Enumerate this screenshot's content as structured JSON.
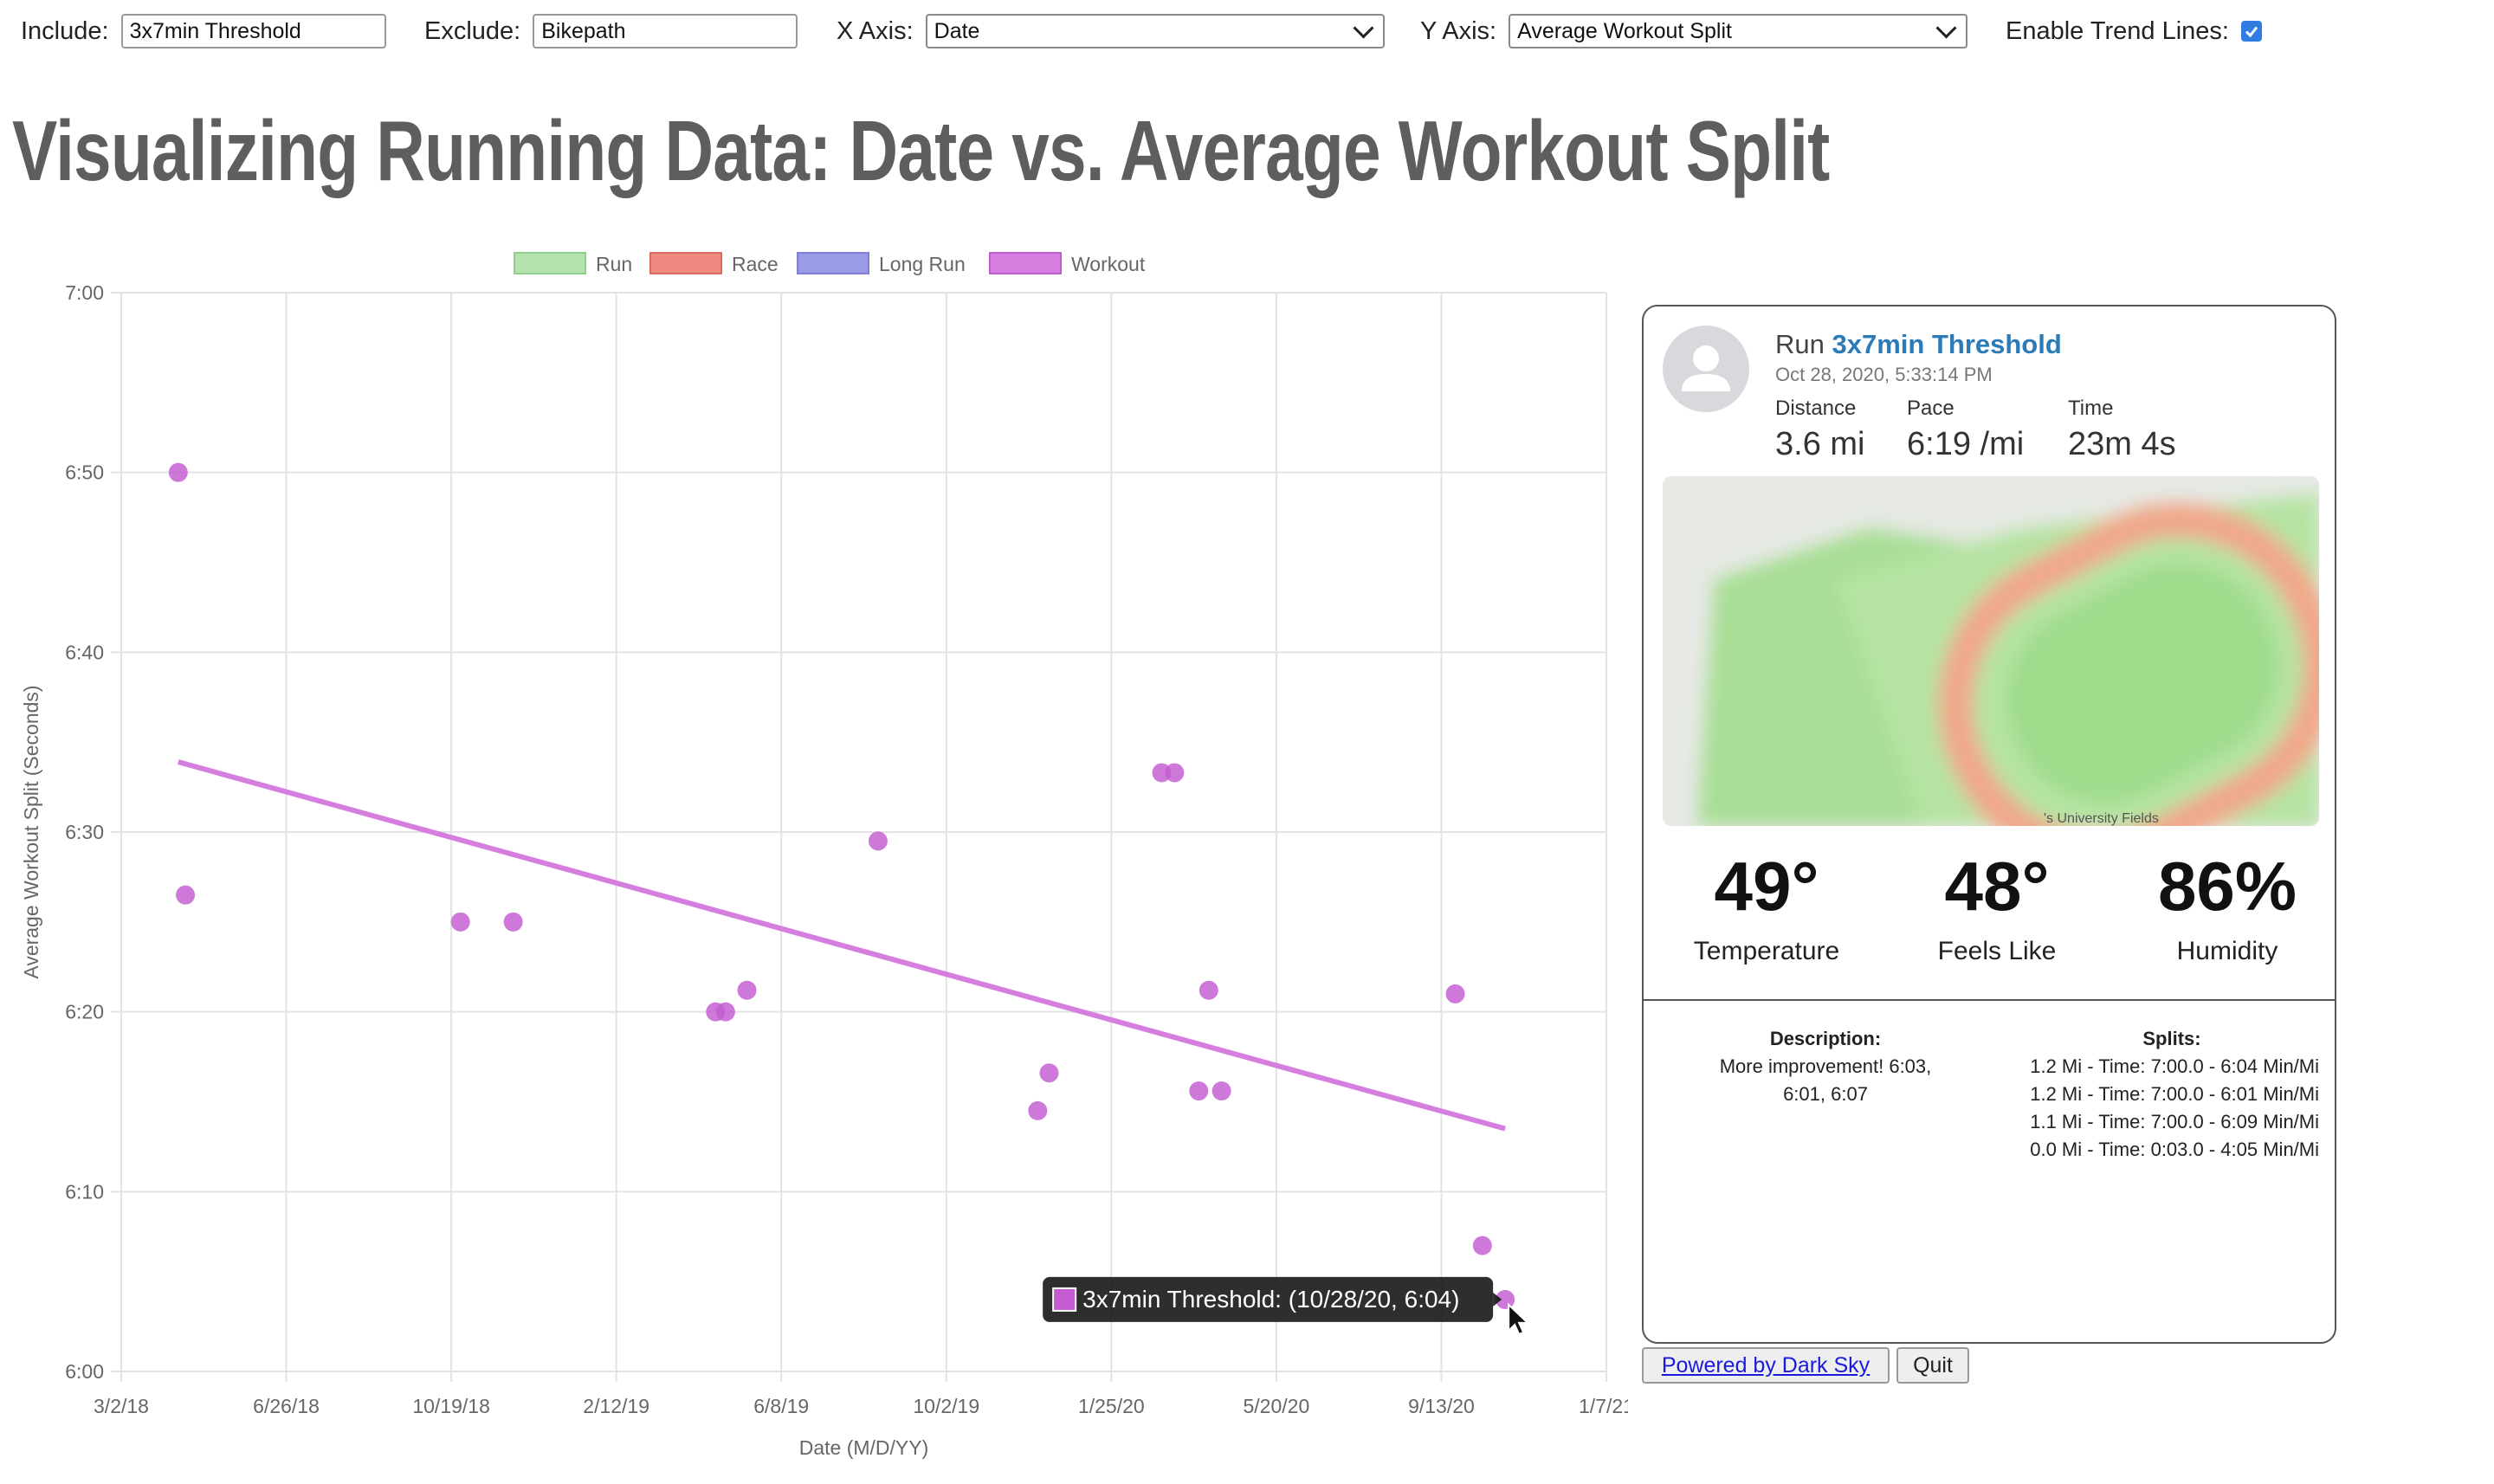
{
  "controls": {
    "include_label": "Include:",
    "include_value": "3x7min Threshold",
    "exclude_label": "Exclude:",
    "exclude_value": "Bikepath",
    "xaxis_label": "X Axis:",
    "xaxis_value": "Date",
    "yaxis_label": "Y Axis:",
    "yaxis_value": "Average Workout Split",
    "trend_label": "Enable Trend Lines:",
    "trend_enabled": true
  },
  "page_title": "Visualizing Running Data: Date vs. Average Workout Split",
  "chart_data": {
    "type": "scatter",
    "xlabel": "Date (M/D/YY)",
    "ylabel": "Average Workout Split (Seconds)",
    "x_ticks": [
      "3/2/18",
      "6/26/18",
      "10/19/18",
      "2/12/19",
      "6/8/19",
      "10/2/19",
      "1/25/20",
      "5/20/20",
      "9/13/20",
      "1/7/21"
    ],
    "y_ticks": [
      "6:00",
      "6:10",
      "6:20",
      "6:30",
      "6:40",
      "6:50",
      "7:00"
    ],
    "xlim": [
      "2018-03-02",
      "2021-01-07"
    ],
    "ylim": [
      360,
      420
    ],
    "grid": true,
    "legend_position": "top",
    "legend": [
      {
        "name": "Run",
        "color": "#b5e3b0",
        "border": "#8fd08a"
      },
      {
        "name": "Race",
        "color": "#ef8a80",
        "border": "#e06a5f"
      },
      {
        "name": "Long Run",
        "color": "#9a9ae6",
        "border": "#7f7fd9"
      },
      {
        "name": "Workout",
        "color": "#d57ee0",
        "border": "#c35bd1"
      }
    ],
    "series": [
      {
        "name": "Workout",
        "color": "#c35bd1",
        "points": [
          {
            "x": "2018-04-11",
            "y": 410
          },
          {
            "x": "2018-04-16",
            "y": 386.5
          },
          {
            "x": "2018-10-26",
            "y": 385
          },
          {
            "x": "2018-12-02",
            "y": 385
          },
          {
            "x": "2019-04-23",
            "y": 380
          },
          {
            "x": "2019-04-30",
            "y": 380
          },
          {
            "x": "2019-05-15",
            "y": 381.2
          },
          {
            "x": "2019-08-15",
            "y": 389.5
          },
          {
            "x": "2019-12-05",
            "y": 374.5
          },
          {
            "x": "2019-12-13",
            "y": 376.6
          },
          {
            "x": "2020-03-01",
            "y": 393.3
          },
          {
            "x": "2020-03-10",
            "y": 393.3
          },
          {
            "x": "2020-03-27",
            "y": 375.6
          },
          {
            "x": "2020-04-03",
            "y": 381.2
          },
          {
            "x": "2020-04-12",
            "y": 375.6
          },
          {
            "x": "2020-09-23",
            "y": 381
          },
          {
            "x": "2020-10-12",
            "y": 367
          },
          {
            "x": "2020-10-28",
            "y": 364
          }
        ]
      }
    ],
    "trend_line": {
      "x1": "2018-04-11",
      "y1": 393.9,
      "x2": "2020-10-28",
      "y2": 373.5,
      "color": "#d57ee0"
    },
    "tooltip": {
      "text": "3x7min Threshold: (10/28/20, 6:04)",
      "color": "#c35bd1"
    }
  },
  "card": {
    "activity_type": "Run",
    "activity_name": "3x7min Threshold",
    "date": "Oct 28, 2020, 5:33:14 PM",
    "distance_label": "Distance",
    "distance_value": "3.6 mi",
    "pace_label": "Pace",
    "pace_value": "6:19 /mi",
    "time_label": "Time",
    "time_value": "23m 4s",
    "temperature_value": "49°",
    "temperature_label": "Temperature",
    "feels_value": "48°",
    "feels_label": "Feels Like",
    "humidity_value": "86%",
    "humidity_label": "Humidity",
    "description_label": "Description:",
    "description_text": "More improvement! 6:03, 6:01, 6:07",
    "splits_label": "Splits:",
    "splits": [
      "1.2 Mi - Time: 7:00.0 - 6:04 Min/Mi",
      "1.2 Mi - Time: 7:00.0 - 6:01 Min/Mi",
      "1.1 Mi - Time: 7:00.0 - 6:09 Min/Mi",
      "0.0 Mi - Time: 0:03.0 - 4:05 Min/Mi"
    ],
    "map_label": "'s University Fields"
  },
  "footer": {
    "darksky_label": "Powered by Dark Sky",
    "quit_label": "Quit"
  }
}
